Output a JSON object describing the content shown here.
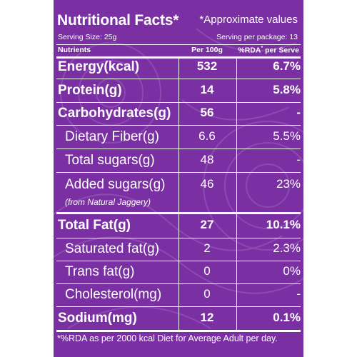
{
  "title": "Nutritional Facts*",
  "approx_note": "*Approximate values",
  "serving_size": "Serving Size: 25g",
  "serving_per_package": "Serving per package: 13",
  "headers": {
    "nutrients": "Nutrients",
    "per100g": "Per 100g",
    "rda": "%RDA",
    "rda_star": "*",
    "per_serve": " per Serve"
  },
  "rows": [
    {
      "name": "Energy(kcal)",
      "per100": "532",
      "rda": "6.7%"
    },
    {
      "name": "Protein(g)",
      "per100": "14",
      "rda": "5.8%"
    },
    {
      "name": "Carbohydrates(g)",
      "per100": "56",
      "rda": "-"
    },
    {
      "name": "Dietary Fiber(g)",
      "per100": "6.6",
      "rda": "5.5%"
    },
    {
      "name": "Total sugars(g)",
      "per100": "48",
      "rda": "-"
    },
    {
      "name": "Added sugars(g)",
      "sub": "(from Natural Jaggery)",
      "per100": "46",
      "rda": "23%"
    },
    {
      "name": "Total Fat(g)",
      "per100": "27",
      "rda": "10.1%"
    },
    {
      "name": "Saturated fat(g)",
      "per100": "2",
      "rda": "2.3%"
    },
    {
      "name": "Trans fat(g)",
      "per100": "0",
      "rda": "0%"
    },
    {
      "name": "Cholesterol(mg)",
      "per100": "0",
      "rda": "-"
    },
    {
      "name": "Sodium(mg)",
      "per100": "12",
      "rda": "0.1%"
    }
  ],
  "footnote": "*%RDA as per 2000 kcal Diet for Average Adult per day.",
  "colors": {
    "background": "#7a2fa3",
    "text": "#ffffff"
  }
}
